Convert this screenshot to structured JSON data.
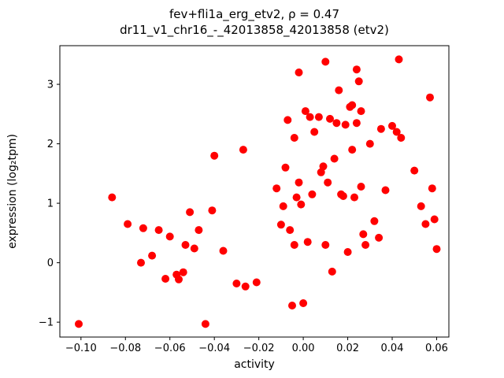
{
  "chart_data": {
    "type": "scatter",
    "title": "fev+fli1a_erg_etv2, ρ = 0.47",
    "subtitle": "dr11_v1_chr16_-_42013858_42013858 (etv2)",
    "xlabel": "activity",
    "ylabel": "expression (log₂tpm)",
    "xlim": [
      -0.1095,
      0.0655
    ],
    "ylim": [
      -1.25,
      3.65
    ],
    "grid": false,
    "legend": "none",
    "marker_color": "#ff0000",
    "xticks": [
      {
        "value": -0.1,
        "label": "−0.10"
      },
      {
        "value": -0.08,
        "label": "−0.08"
      },
      {
        "value": -0.06,
        "label": "−0.06"
      },
      {
        "value": -0.04,
        "label": "−0.04"
      },
      {
        "value": -0.02,
        "label": "−0.02"
      },
      {
        "value": 0.0,
        "label": "0.00"
      },
      {
        "value": 0.02,
        "label": "0.02"
      },
      {
        "value": 0.04,
        "label": "0.04"
      },
      {
        "value": 0.06,
        "label": "0.06"
      }
    ],
    "yticks": [
      {
        "value": -1,
        "label": "−1"
      },
      {
        "value": 0,
        "label": "0"
      },
      {
        "value": 1,
        "label": "1"
      },
      {
        "value": 2,
        "label": "2"
      },
      {
        "value": 3,
        "label": "3"
      }
    ],
    "points": [
      [
        -0.101,
        -1.03
      ],
      [
        -0.086,
        1.1
      ],
      [
        -0.079,
        0.65
      ],
      [
        -0.073,
        0.0
      ],
      [
        -0.072,
        0.58
      ],
      [
        -0.068,
        0.12
      ],
      [
        -0.065,
        0.55
      ],
      [
        -0.062,
        -0.27
      ],
      [
        -0.06,
        0.44
      ],
      [
        -0.057,
        -0.2
      ],
      [
        -0.056,
        -0.28
      ],
      [
        -0.054,
        -0.16
      ],
      [
        -0.053,
        0.3
      ],
      [
        -0.051,
        0.85
      ],
      [
        -0.049,
        0.24
      ],
      [
        -0.047,
        0.55
      ],
      [
        -0.044,
        -1.03
      ],
      [
        -0.041,
        0.88
      ],
      [
        -0.04,
        1.8
      ],
      [
        -0.036,
        0.2
      ],
      [
        -0.03,
        -0.35
      ],
      [
        -0.027,
        1.9
      ],
      [
        -0.026,
        -0.4
      ],
      [
        -0.021,
        -0.33
      ],
      [
        -0.012,
        1.25
      ],
      [
        -0.01,
        0.64
      ],
      [
        -0.009,
        0.95
      ],
      [
        -0.008,
        1.6
      ],
      [
        -0.007,
        2.4
      ],
      [
        -0.006,
        0.55
      ],
      [
        -0.005,
        -0.72
      ],
      [
        -0.004,
        2.1
      ],
      [
        -0.004,
        0.3
      ],
      [
        -0.003,
        1.1
      ],
      [
        -0.002,
        3.2
      ],
      [
        -0.002,
        1.35
      ],
      [
        -0.001,
        0.98
      ],
      [
        0.0,
        -0.68
      ],
      [
        0.001,
        2.55
      ],
      [
        0.002,
        0.35
      ],
      [
        0.003,
        2.45
      ],
      [
        0.004,
        1.15
      ],
      [
        0.005,
        2.2
      ],
      [
        0.007,
        2.45
      ],
      [
        0.008,
        1.52
      ],
      [
        0.009,
        1.62
      ],
      [
        0.01,
        3.38
      ],
      [
        0.01,
        0.3
      ],
      [
        0.011,
        1.35
      ],
      [
        0.012,
        2.42
      ],
      [
        0.013,
        -0.15
      ],
      [
        0.014,
        1.75
      ],
      [
        0.015,
        2.35
      ],
      [
        0.016,
        2.9
      ],
      [
        0.017,
        1.15
      ],
      [
        0.018,
        1.12
      ],
      [
        0.019,
        2.32
      ],
      [
        0.02,
        0.18
      ],
      [
        0.021,
        2.62
      ],
      [
        0.022,
        2.65
      ],
      [
        0.022,
        1.9
      ],
      [
        0.023,
        1.1
      ],
      [
        0.024,
        3.25
      ],
      [
        0.024,
        2.35
      ],
      [
        0.025,
        3.05
      ],
      [
        0.026,
        2.55
      ],
      [
        0.026,
        1.28
      ],
      [
        0.027,
        0.48
      ],
      [
        0.028,
        0.3
      ],
      [
        0.03,
        2.0
      ],
      [
        0.032,
        0.7
      ],
      [
        0.034,
        0.42
      ],
      [
        0.035,
        2.25
      ],
      [
        0.037,
        1.22
      ],
      [
        0.04,
        2.3
      ],
      [
        0.042,
        2.2
      ],
      [
        0.043,
        3.42
      ],
      [
        0.044,
        2.1
      ],
      [
        0.05,
        1.55
      ],
      [
        0.053,
        0.95
      ],
      [
        0.055,
        0.65
      ],
      [
        0.057,
        2.78
      ],
      [
        0.058,
        1.25
      ],
      [
        0.059,
        0.73
      ],
      [
        0.06,
        0.23
      ]
    ]
  }
}
